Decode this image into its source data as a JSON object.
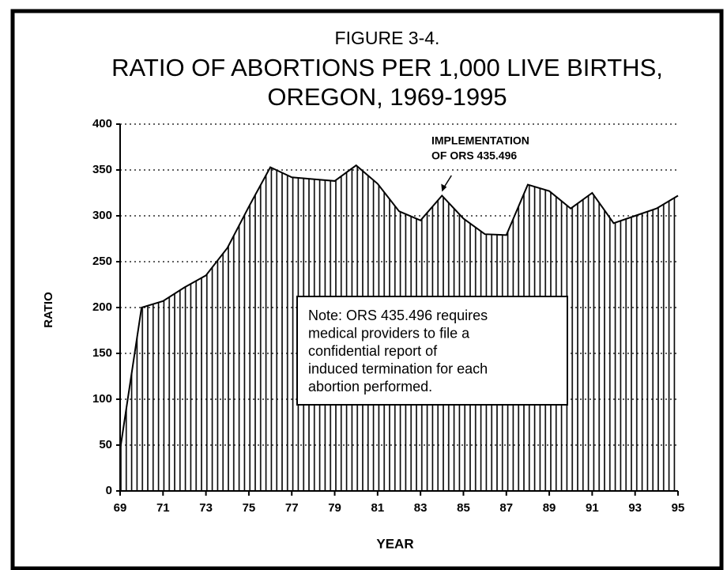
{
  "chart_data": {
    "type": "area",
    "figure_label": "FIGURE 3-4.",
    "title": [
      "RATIO OF ABORTIONS PER 1,000 LIVE BIRTHS,",
      "OREGON, 1969-1995"
    ],
    "x_label": "YEAR",
    "y_label": "RATIO",
    "x": [
      69,
      70,
      71,
      72,
      73,
      74,
      75,
      76,
      77,
      78,
      79,
      80,
      81,
      82,
      83,
      84,
      85,
      86,
      87,
      88,
      89,
      90,
      91,
      92,
      93,
      94,
      95
    ],
    "values": [
      45,
      200,
      207,
      222,
      235,
      265,
      310,
      353,
      342,
      340,
      338,
      355,
      335,
      305,
      295,
      322,
      297,
      280,
      279,
      334,
      327,
      308,
      325,
      292,
      300,
      308,
      322
    ],
    "color": "#000000",
    "xlim": [
      69,
      95
    ],
    "xticks": [
      69,
      71,
      73,
      75,
      77,
      79,
      81,
      83,
      85,
      87,
      89,
      91,
      93,
      95
    ],
    "ylim": [
      0,
      400
    ],
    "yticks": [
      0,
      50,
      100,
      150,
      200,
      250,
      300,
      350,
      400
    ],
    "grid": true,
    "annotation": {
      "lines": [
        "IMPLEMENTATION",
        "OF ORS 435.496"
      ],
      "x": 84
    },
    "note": [
      "Note:  ORS 435.496 requires",
      "medical providers to file a",
      "confidential report of",
      "induced termination for each",
      "abortion performed."
    ]
  }
}
